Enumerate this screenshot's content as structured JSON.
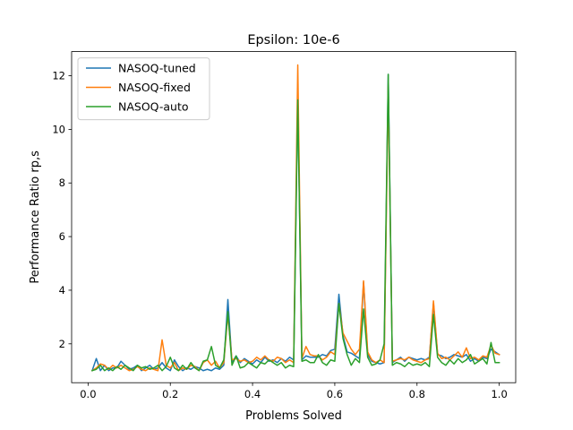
{
  "chart_data": {
    "type": "line",
    "title": "Epsilon: 10e-6",
    "xlabel": "Problems Solved",
    "ylabel": "Performance Ratio rp,s",
    "xlim": [
      -0.04,
      1.04
    ],
    "ylim": [
      0.55,
      12.9
    ],
    "xticks": [
      0.0,
      0.2,
      0.4,
      0.6,
      0.8,
      1.0
    ],
    "xtick_labels": [
      "0.0",
      "0.2",
      "0.4",
      "0.6",
      "0.8",
      "1.0"
    ],
    "yticks": [
      2,
      4,
      6,
      8,
      10,
      12
    ],
    "ytick_labels": [
      "2",
      "4",
      "6",
      "8",
      "10",
      "12"
    ],
    "grid": false,
    "legend_position": "top-left",
    "series": [
      {
        "name": "NASOQ-tuned",
        "color": "#1f77b4",
        "x": [
          0.01,
          0.02,
          0.03,
          0.04,
          0.05,
          0.06,
          0.07,
          0.08,
          0.09,
          0.1,
          0.11,
          0.12,
          0.13,
          0.14,
          0.15,
          0.16,
          0.17,
          0.18,
          0.19,
          0.2,
          0.21,
          0.22,
          0.23,
          0.24,
          0.25,
          0.26,
          0.27,
          0.28,
          0.29,
          0.3,
          0.31,
          0.32,
          0.33,
          0.34,
          0.35,
          0.36,
          0.37,
          0.38,
          0.39,
          0.4,
          0.41,
          0.42,
          0.43,
          0.44,
          0.45,
          0.46,
          0.47,
          0.48,
          0.49,
          0.5,
          0.51,
          0.52,
          0.53,
          0.54,
          0.55,
          0.56,
          0.57,
          0.58,
          0.59,
          0.6,
          0.61,
          0.62,
          0.63,
          0.64,
          0.65,
          0.66,
          0.67,
          0.68,
          0.69,
          0.7,
          0.71,
          0.72,
          0.73,
          0.74,
          0.75,
          0.76,
          0.77,
          0.78,
          0.79,
          0.8,
          0.81,
          0.82,
          0.83,
          0.84,
          0.85,
          0.86,
          0.87,
          0.88,
          0.89,
          0.9,
          0.91,
          0.92,
          0.93,
          0.94,
          0.95,
          0.96,
          0.97,
          0.98,
          0.99,
          1.0
        ],
        "values": [
          1.0,
          1.45,
          1.0,
          1.2,
          1.0,
          1.1,
          1.1,
          1.35,
          1.2,
          1.05,
          1.1,
          1.2,
          1.0,
          1.1,
          1.2,
          1.05,
          1.1,
          1.3,
          1.1,
          1.0,
          1.4,
          1.15,
          1.0,
          1.1,
          1.05,
          1.15,
          1.1,
          1.0,
          1.05,
          1.0,
          1.1,
          1.05,
          1.2,
          3.65,
          1.3,
          1.55,
          1.3,
          1.45,
          1.35,
          1.25,
          1.4,
          1.3,
          1.5,
          1.35,
          1.4,
          1.3,
          1.45,
          1.35,
          1.5,
          1.4,
          11.2,
          1.4,
          1.55,
          1.5,
          1.5,
          1.5,
          1.6,
          1.55,
          1.75,
          1.8,
          3.85,
          2.3,
          1.7,
          1.65,
          1.55,
          1.45,
          4.3,
          1.6,
          1.35,
          1.3,
          1.25,
          1.3,
          12.05,
          1.3,
          1.4,
          1.5,
          1.35,
          1.5,
          1.45,
          1.4,
          1.45,
          1.4,
          1.5,
          3.5,
          1.6,
          1.55,
          1.45,
          1.5,
          1.6,
          1.55,
          1.5,
          1.6,
          1.35,
          1.45,
          1.35,
          1.5,
          1.45,
          1.8,
          1.7,
          1.6
        ]
      },
      {
        "name": "NASOQ-fixed",
        "color": "#ff7f0e",
        "x": [
          0.01,
          0.02,
          0.03,
          0.04,
          0.05,
          0.06,
          0.07,
          0.08,
          0.09,
          0.1,
          0.11,
          0.12,
          0.13,
          0.14,
          0.15,
          0.16,
          0.17,
          0.18,
          0.19,
          0.2,
          0.21,
          0.22,
          0.23,
          0.24,
          0.25,
          0.26,
          0.27,
          0.28,
          0.29,
          0.3,
          0.31,
          0.32,
          0.33,
          0.34,
          0.35,
          0.36,
          0.37,
          0.38,
          0.39,
          0.4,
          0.41,
          0.42,
          0.43,
          0.44,
          0.45,
          0.46,
          0.47,
          0.48,
          0.49,
          0.5,
          0.51,
          0.52,
          0.53,
          0.54,
          0.55,
          0.56,
          0.57,
          0.58,
          0.59,
          0.6,
          0.61,
          0.62,
          0.63,
          0.64,
          0.65,
          0.66,
          0.67,
          0.68,
          0.69,
          0.7,
          0.71,
          0.72,
          0.73,
          0.74,
          0.75,
          0.76,
          0.77,
          0.78,
          0.79,
          0.8,
          0.81,
          0.82,
          0.83,
          0.84,
          0.85,
          0.86,
          0.87,
          0.88,
          0.89,
          0.9,
          0.91,
          0.92,
          0.93,
          0.94,
          0.95,
          0.96,
          0.97,
          0.98,
          0.99,
          1.0
        ],
        "values": [
          1.0,
          1.1,
          1.25,
          1.2,
          1.05,
          1.2,
          1.1,
          1.2,
          1.1,
          1.0,
          1.05,
          1.15,
          1.05,
          1.0,
          1.1,
          1.05,
          1.0,
          2.15,
          1.2,
          1.1,
          1.3,
          1.0,
          1.1,
          1.05,
          1.2,
          1.15,
          1.0,
          1.3,
          1.4,
          1.2,
          1.35,
          1.1,
          1.3,
          3.1,
          1.4,
          1.45,
          1.35,
          1.4,
          1.3,
          1.35,
          1.5,
          1.4,
          1.55,
          1.4,
          1.35,
          1.5,
          1.45,
          1.3,
          1.4,
          1.3,
          12.4,
          1.45,
          1.9,
          1.6,
          1.55,
          1.55,
          1.4,
          1.5,
          1.7,
          1.6,
          3.5,
          2.4,
          2.1,
          1.8,
          1.6,
          1.8,
          4.35,
          1.7,
          1.4,
          1.3,
          1.4,
          1.3,
          11.6,
          1.35,
          1.4,
          1.45,
          1.4,
          1.5,
          1.4,
          1.35,
          1.3,
          1.4,
          1.45,
          3.6,
          1.65,
          1.45,
          1.5,
          1.4,
          1.55,
          1.7,
          1.5,
          1.85,
          1.45,
          1.5,
          1.4,
          1.55,
          1.5,
          1.95,
          1.65,
          1.6
        ]
      },
      {
        "name": "NASOQ-auto",
        "color": "#2ca02c",
        "x": [
          0.01,
          0.02,
          0.03,
          0.04,
          0.05,
          0.06,
          0.07,
          0.08,
          0.09,
          0.1,
          0.11,
          0.12,
          0.13,
          0.14,
          0.15,
          0.16,
          0.17,
          0.18,
          0.19,
          0.2,
          0.21,
          0.22,
          0.23,
          0.24,
          0.25,
          0.26,
          0.27,
          0.28,
          0.29,
          0.3,
          0.31,
          0.32,
          0.33,
          0.34,
          0.35,
          0.36,
          0.37,
          0.38,
          0.39,
          0.4,
          0.41,
          0.42,
          0.43,
          0.44,
          0.45,
          0.46,
          0.47,
          0.48,
          0.49,
          0.5,
          0.51,
          0.52,
          0.53,
          0.54,
          0.55,
          0.56,
          0.57,
          0.58,
          0.59,
          0.6,
          0.61,
          0.62,
          0.63,
          0.64,
          0.65,
          0.66,
          0.67,
          0.68,
          0.69,
          0.7,
          0.71,
          0.72,
          0.73,
          0.74,
          0.75,
          0.76,
          0.77,
          0.78,
          0.79,
          0.8,
          0.81,
          0.82,
          0.83,
          0.84,
          0.85,
          0.86,
          0.87,
          0.88,
          0.89,
          0.9,
          0.91,
          0.92,
          0.93,
          0.94,
          0.95,
          0.96,
          0.97,
          0.98,
          0.99,
          1.0
        ],
        "values": [
          1.0,
          1.05,
          1.2,
          1.0,
          1.1,
          1.0,
          1.15,
          1.05,
          1.2,
          1.1,
          1.0,
          1.2,
          1.1,
          1.15,
          1.05,
          1.1,
          1.2,
          1.0,
          1.15,
          1.5,
          1.1,
          1.0,
          1.2,
          1.05,
          1.3,
          1.1,
          1.0,
          1.35,
          1.4,
          1.9,
          1.2,
          1.1,
          1.4,
          3.2,
          1.2,
          1.55,
          1.1,
          1.15,
          1.3,
          1.2,
          1.1,
          1.3,
          1.25,
          1.4,
          1.3,
          1.2,
          1.3,
          1.1,
          1.2,
          1.15,
          11.1,
          1.35,
          1.4,
          1.3,
          1.3,
          1.6,
          1.3,
          1.2,
          1.4,
          1.35,
          3.5,
          2.2,
          1.6,
          1.2,
          1.45,
          1.3,
          3.3,
          1.5,
          1.2,
          1.25,
          1.4,
          2.0,
          12.05,
          1.2,
          1.3,
          1.25,
          1.15,
          1.3,
          1.2,
          1.25,
          1.2,
          1.3,
          1.15,
          3.1,
          1.5,
          1.3,
          1.2,
          1.4,
          1.25,
          1.45,
          1.3,
          1.4,
          1.6,
          1.25,
          1.35,
          1.45,
          1.25,
          2.05,
          1.3,
          1.3
        ]
      }
    ]
  }
}
